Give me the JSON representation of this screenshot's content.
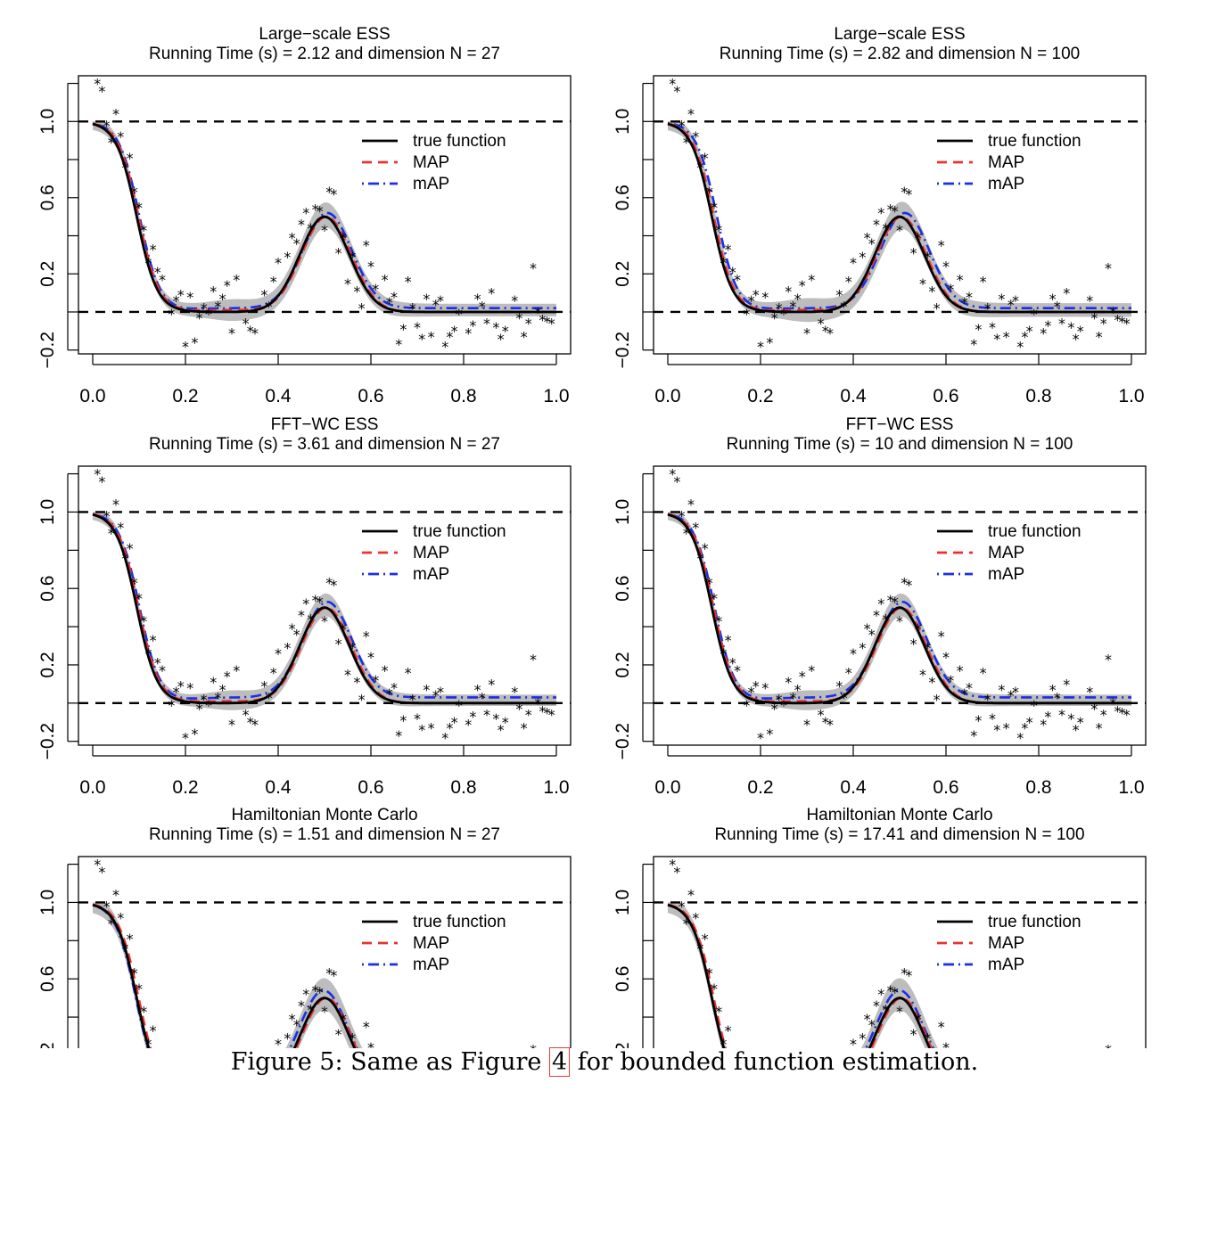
{
  "caption": {
    "before": "Figure 5: Same as Figure ",
    "ref": "4",
    "after": " for bounded function estimation."
  },
  "colors": {
    "true_function": "#000000",
    "map": "#e8332e",
    "mAP": "#1a2fe6",
    "band": "#bdbdbd",
    "reference_lines": "#000000",
    "observations": "#000000"
  },
  "legend": {
    "position": "top-right",
    "entries": [
      {
        "label": "true function",
        "style": "solid",
        "color": "#000000"
      },
      {
        "label": "MAP",
        "style": "dashed",
        "color": "#e8332e"
      },
      {
        "label": "mAP",
        "style": "dot-dash",
        "color": "#1a2fe6"
      }
    ]
  },
  "x_axis": {
    "ticks": [
      0.0,
      0.2,
      0.4,
      0.6,
      0.8,
      1.0
    ],
    "tick_labels": [
      "0.0",
      "0.2",
      "0.4",
      "0.6",
      "0.8",
      "1.0"
    ],
    "range": [
      0,
      1
    ]
  },
  "y_axis": {
    "ticks": [
      -0.2,
      0.2,
      0.6,
      1.0
    ],
    "tick_labels": [
      "−0.2",
      "0.2",
      "0.6",
      "1.0"
    ],
    "minor_ticks": [
      0,
      0.4,
      0.8,
      1.2
    ],
    "range": [
      -0.22,
      1.24
    ]
  },
  "reference_lines": [
    0,
    1
  ],
  "observations": {
    "marker": "*",
    "x": [
      0.01,
      0.02,
      0.03,
      0.04,
      0.05,
      0.06,
      0.07,
      0.08,
      0.09,
      0.1,
      0.11,
      0.12,
      0.13,
      0.14,
      0.15,
      0.17,
      0.18,
      0.19,
      0.2,
      0.21,
      0.22,
      0.23,
      0.24,
      0.25,
      0.26,
      0.27,
      0.28,
      0.29,
      0.3,
      0.31,
      0.33,
      0.34,
      0.35,
      0.37,
      0.38,
      0.39,
      0.4,
      0.42,
      0.43,
      0.44,
      0.45,
      0.46,
      0.47,
      0.48,
      0.49,
      0.5,
      0.51,
      0.52,
      0.53,
      0.54,
      0.55,
      0.56,
      0.57,
      0.58,
      0.59,
      0.6,
      0.61,
      0.63,
      0.64,
      0.65,
      0.66,
      0.67,
      0.68,
      0.69,
      0.7,
      0.71,
      0.72,
      0.73,
      0.74,
      0.75,
      0.76,
      0.77,
      0.78,
      0.79,
      0.81,
      0.82,
      0.83,
      0.84,
      0.85,
      0.86,
      0.87,
      0.88,
      0.89,
      0.91,
      0.92,
      0.93,
      0.94,
      0.95,
      0.96,
      0.97,
      0.98,
      0.99
    ],
    "y": [
      1.21,
      1.17,
      0.99,
      0.9,
      1.05,
      0.93,
      0.77,
      0.82,
      0.64,
      0.56,
      0.44,
      0.27,
      0.34,
      0.22,
      0.18,
      0.0,
      0.07,
      0.1,
      -0.17,
      0.09,
      -0.15,
      -0.02,
      0.03,
      0.0,
      0.12,
      0.04,
      0.08,
      0.15,
      -0.1,
      0.18,
      -0.05,
      -0.09,
      -0.1,
      0.1,
      0.04,
      0.17,
      0.27,
      0.3,
      0.4,
      0.37,
      0.47,
      0.53,
      0.45,
      0.55,
      0.54,
      0.44,
      0.64,
      0.63,
      0.32,
      0.4,
      0.16,
      0.3,
      0.12,
      0.03,
      0.36,
      0.25,
      0.13,
      0.18,
      0.06,
      0.09,
      -0.16,
      -0.08,
      0.17,
      0.03,
      -0.07,
      -0.13,
      0.08,
      -0.12,
      0.05,
      0.07,
      -0.17,
      -0.12,
      -0.09,
      0.0,
      -0.1,
      -0.06,
      0.08,
      0.04,
      -0.05,
      0.11,
      -0.07,
      -0.13,
      -0.09,
      0.07,
      -0.02,
      -0.12,
      -0.05,
      0.24,
      0.01,
      -0.03,
      -0.04,
      -0.05
    ]
  },
  "chart_data": [
    {
      "type": "line",
      "title": "Large−scale ESS",
      "subtitle": "Running Time (s) =  2.12 and dimension N =  27",
      "x_range": [
        0,
        1
      ],
      "y_range": [
        -0.22,
        1.24
      ],
      "series": [
        {
          "name": "true function",
          "key": "true"
        },
        {
          "name": "MAP",
          "key": "map"
        },
        {
          "name": "mAP",
          "key": "mAP"
        }
      ],
      "band": "credible band (shaded)",
      "mAP_offset": {
        "tail": 0.02,
        "bump_shift": 0.0
      },
      "band_width": 0.055
    },
    {
      "type": "line",
      "title": "Large−scale ESS",
      "subtitle": "Running Time (s) =  2.82 and dimension N =  100",
      "x_range": [
        0,
        1
      ],
      "y_range": [
        -0.22,
        1.24
      ],
      "series": [
        {
          "name": "true function",
          "key": "true"
        },
        {
          "name": "MAP",
          "key": "map"
        },
        {
          "name": "mAP",
          "key": "mAP"
        }
      ],
      "band": "credible band (shaded)",
      "mAP_offset": {
        "tail": 0.02,
        "bump_shift": 0.005
      },
      "band_width": 0.06
    },
    {
      "type": "line",
      "title": "FFT−WC ESS",
      "subtitle": "Running Time (s) =  3.61 and dimension N =  27",
      "x_range": [
        0,
        1
      ],
      "y_range": [
        -0.22,
        1.24
      ],
      "series": [
        {
          "name": "true function",
          "key": "true"
        },
        {
          "name": "MAP",
          "key": "map"
        },
        {
          "name": "mAP",
          "key": "mAP"
        }
      ],
      "band": "credible band (shaded)",
      "mAP_offset": {
        "tail": 0.03,
        "bump_shift": 0.0
      },
      "band_width": 0.05
    },
    {
      "type": "line",
      "title": "FFT−WC ESS",
      "subtitle": "Running Time (s) =  10 and dimension N =  100",
      "x_range": [
        0,
        1
      ],
      "y_range": [
        -0.22,
        1.24
      ],
      "series": [
        {
          "name": "true function",
          "key": "true"
        },
        {
          "name": "MAP",
          "key": "map"
        },
        {
          "name": "mAP",
          "key": "mAP"
        }
      ],
      "band": "credible band (shaded)",
      "mAP_offset": {
        "tail": 0.03,
        "bump_shift": 0.0
      },
      "band_width": 0.05
    },
    {
      "type": "line",
      "title": "Hamiltonian Monte Carlo",
      "subtitle": "Running Time (s) =  1.51 and dimension N =  27",
      "x_range": [
        0,
        1
      ],
      "y_range": [
        -0.22,
        1.24
      ],
      "series": [
        {
          "name": "true function",
          "key": "true"
        },
        {
          "name": "MAP",
          "key": "map"
        },
        {
          "name": "mAP",
          "key": "mAP"
        }
      ],
      "band": "credible band (shaded)",
      "mAP_offset": {
        "tail": 0.04,
        "bump_shift": -0.008
      },
      "band_width": 0.07
    },
    {
      "type": "line",
      "title": "Hamiltonian Monte Carlo",
      "subtitle": "Running Time (s) =  17.41 and dimension N =  100",
      "x_range": [
        0,
        1
      ],
      "y_range": [
        -0.22,
        1.24
      ],
      "series": [
        {
          "name": "true function",
          "key": "true"
        },
        {
          "name": "MAP",
          "key": "map"
        },
        {
          "name": "mAP",
          "key": "mAP"
        }
      ],
      "band": "credible band (shaded)",
      "mAP_offset": {
        "tail": 0.04,
        "bump_shift": -0.006
      },
      "band_width": 0.07
    }
  ]
}
